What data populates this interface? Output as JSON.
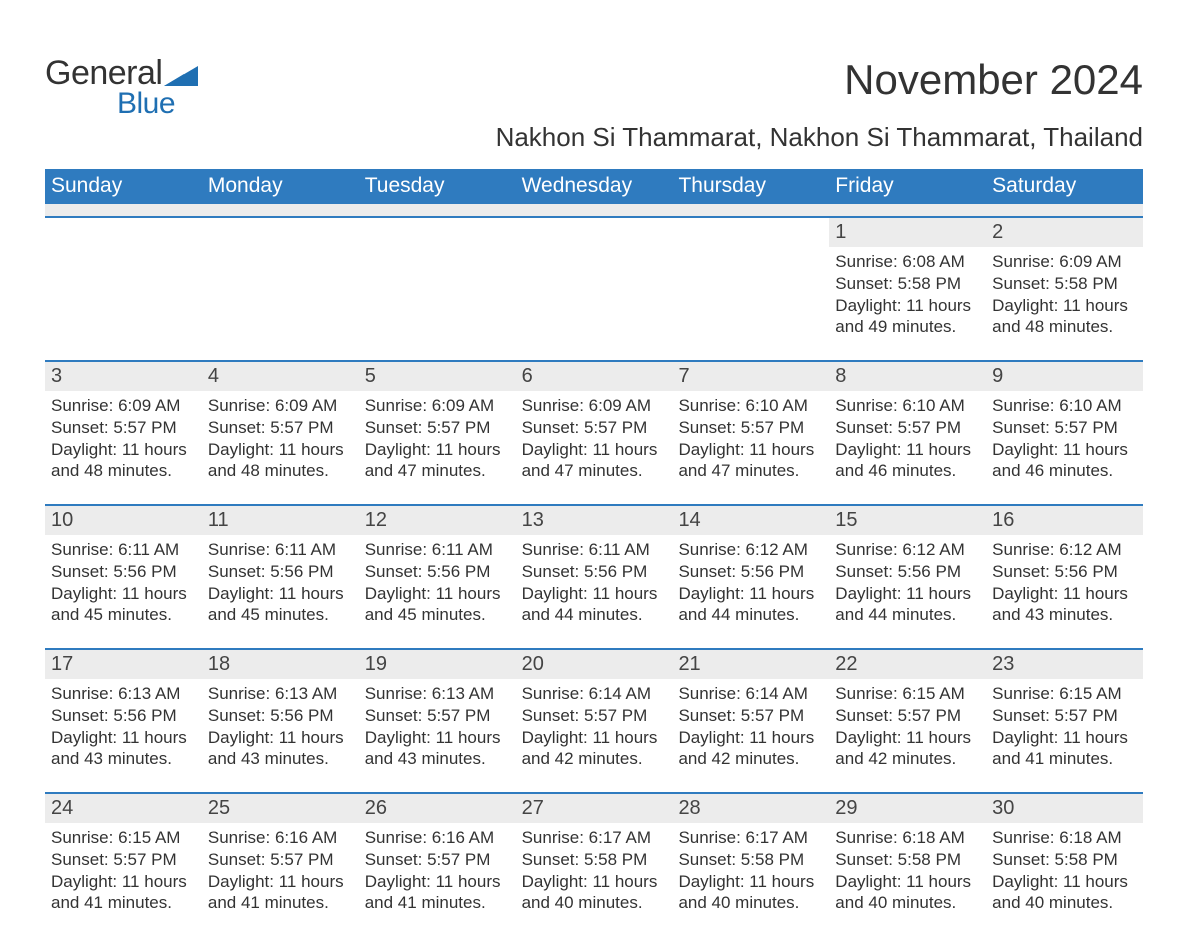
{
  "colors": {
    "header_bg": "#2f7bbf",
    "header_fg": "#ffffff",
    "accent_line": "#2f7bbf",
    "daynum_bg": "#ececec",
    "filler_bg": "#ececec",
    "logo_blue": "#1f6fb2",
    "text": "#333333",
    "background": "#ffffff"
  },
  "logo": {
    "text1": "General",
    "text2": "Blue"
  },
  "title": "November 2024",
  "location": "Nakhon Si Thammarat, Nakhon Si Thammarat, Thailand",
  "day_headers": [
    "Sunday",
    "Monday",
    "Tuesday",
    "Wednesday",
    "Thursday",
    "Friday",
    "Saturday"
  ],
  "weeks": [
    [
      {
        "empty": true
      },
      {
        "empty": true
      },
      {
        "empty": true
      },
      {
        "empty": true
      },
      {
        "empty": true
      },
      {
        "num": "1",
        "sunrise": "Sunrise: 6:08 AM",
        "sunset": "Sunset: 5:58 PM",
        "daylight": "Daylight: 11 hours and 49 minutes."
      },
      {
        "num": "2",
        "sunrise": "Sunrise: 6:09 AM",
        "sunset": "Sunset: 5:58 PM",
        "daylight": "Daylight: 11 hours and 48 minutes."
      }
    ],
    [
      {
        "num": "3",
        "sunrise": "Sunrise: 6:09 AM",
        "sunset": "Sunset: 5:57 PM",
        "daylight": "Daylight: 11 hours and 48 minutes."
      },
      {
        "num": "4",
        "sunrise": "Sunrise: 6:09 AM",
        "sunset": "Sunset: 5:57 PM",
        "daylight": "Daylight: 11 hours and 48 minutes."
      },
      {
        "num": "5",
        "sunrise": "Sunrise: 6:09 AM",
        "sunset": "Sunset: 5:57 PM",
        "daylight": "Daylight: 11 hours and 47 minutes."
      },
      {
        "num": "6",
        "sunrise": "Sunrise: 6:09 AM",
        "sunset": "Sunset: 5:57 PM",
        "daylight": "Daylight: 11 hours and 47 minutes."
      },
      {
        "num": "7",
        "sunrise": "Sunrise: 6:10 AM",
        "sunset": "Sunset: 5:57 PM",
        "daylight": "Daylight: 11 hours and 47 minutes."
      },
      {
        "num": "8",
        "sunrise": "Sunrise: 6:10 AM",
        "sunset": "Sunset: 5:57 PM",
        "daylight": "Daylight: 11 hours and 46 minutes."
      },
      {
        "num": "9",
        "sunrise": "Sunrise: 6:10 AM",
        "sunset": "Sunset: 5:57 PM",
        "daylight": "Daylight: 11 hours and 46 minutes."
      }
    ],
    [
      {
        "num": "10",
        "sunrise": "Sunrise: 6:11 AM",
        "sunset": "Sunset: 5:56 PM",
        "daylight": "Daylight: 11 hours and 45 minutes."
      },
      {
        "num": "11",
        "sunrise": "Sunrise: 6:11 AM",
        "sunset": "Sunset: 5:56 PM",
        "daylight": "Daylight: 11 hours and 45 minutes."
      },
      {
        "num": "12",
        "sunrise": "Sunrise: 6:11 AM",
        "sunset": "Sunset: 5:56 PM",
        "daylight": "Daylight: 11 hours and 45 minutes."
      },
      {
        "num": "13",
        "sunrise": "Sunrise: 6:11 AM",
        "sunset": "Sunset: 5:56 PM",
        "daylight": "Daylight: 11 hours and 44 minutes."
      },
      {
        "num": "14",
        "sunrise": "Sunrise: 6:12 AM",
        "sunset": "Sunset: 5:56 PM",
        "daylight": "Daylight: 11 hours and 44 minutes."
      },
      {
        "num": "15",
        "sunrise": "Sunrise: 6:12 AM",
        "sunset": "Sunset: 5:56 PM",
        "daylight": "Daylight: 11 hours and 44 minutes."
      },
      {
        "num": "16",
        "sunrise": "Sunrise: 6:12 AM",
        "sunset": "Sunset: 5:56 PM",
        "daylight": "Daylight: 11 hours and 43 minutes."
      }
    ],
    [
      {
        "num": "17",
        "sunrise": "Sunrise: 6:13 AM",
        "sunset": "Sunset: 5:56 PM",
        "daylight": "Daylight: 11 hours and 43 minutes."
      },
      {
        "num": "18",
        "sunrise": "Sunrise: 6:13 AM",
        "sunset": "Sunset: 5:56 PM",
        "daylight": "Daylight: 11 hours and 43 minutes."
      },
      {
        "num": "19",
        "sunrise": "Sunrise: 6:13 AM",
        "sunset": "Sunset: 5:57 PM",
        "daylight": "Daylight: 11 hours and 43 minutes."
      },
      {
        "num": "20",
        "sunrise": "Sunrise: 6:14 AM",
        "sunset": "Sunset: 5:57 PM",
        "daylight": "Daylight: 11 hours and 42 minutes."
      },
      {
        "num": "21",
        "sunrise": "Sunrise: 6:14 AM",
        "sunset": "Sunset: 5:57 PM",
        "daylight": "Daylight: 11 hours and 42 minutes."
      },
      {
        "num": "22",
        "sunrise": "Sunrise: 6:15 AM",
        "sunset": "Sunset: 5:57 PM",
        "daylight": "Daylight: 11 hours and 42 minutes."
      },
      {
        "num": "23",
        "sunrise": "Sunrise: 6:15 AM",
        "sunset": "Sunset: 5:57 PM",
        "daylight": "Daylight: 11 hours and 41 minutes."
      }
    ],
    [
      {
        "num": "24",
        "sunrise": "Sunrise: 6:15 AM",
        "sunset": "Sunset: 5:57 PM",
        "daylight": "Daylight: 11 hours and 41 minutes."
      },
      {
        "num": "25",
        "sunrise": "Sunrise: 6:16 AM",
        "sunset": "Sunset: 5:57 PM",
        "daylight": "Daylight: 11 hours and 41 minutes."
      },
      {
        "num": "26",
        "sunrise": "Sunrise: 6:16 AM",
        "sunset": "Sunset: 5:57 PM",
        "daylight": "Daylight: 11 hours and 41 minutes."
      },
      {
        "num": "27",
        "sunrise": "Sunrise: 6:17 AM",
        "sunset": "Sunset: 5:58 PM",
        "daylight": "Daylight: 11 hours and 40 minutes."
      },
      {
        "num": "28",
        "sunrise": "Sunrise: 6:17 AM",
        "sunset": "Sunset: 5:58 PM",
        "daylight": "Daylight: 11 hours and 40 minutes."
      },
      {
        "num": "29",
        "sunrise": "Sunrise: 6:18 AM",
        "sunset": "Sunset: 5:58 PM",
        "daylight": "Daylight: 11 hours and 40 minutes."
      },
      {
        "num": "30",
        "sunrise": "Sunrise: 6:18 AM",
        "sunset": "Sunset: 5:58 PM",
        "daylight": "Daylight: 11 hours and 40 minutes."
      }
    ]
  ]
}
